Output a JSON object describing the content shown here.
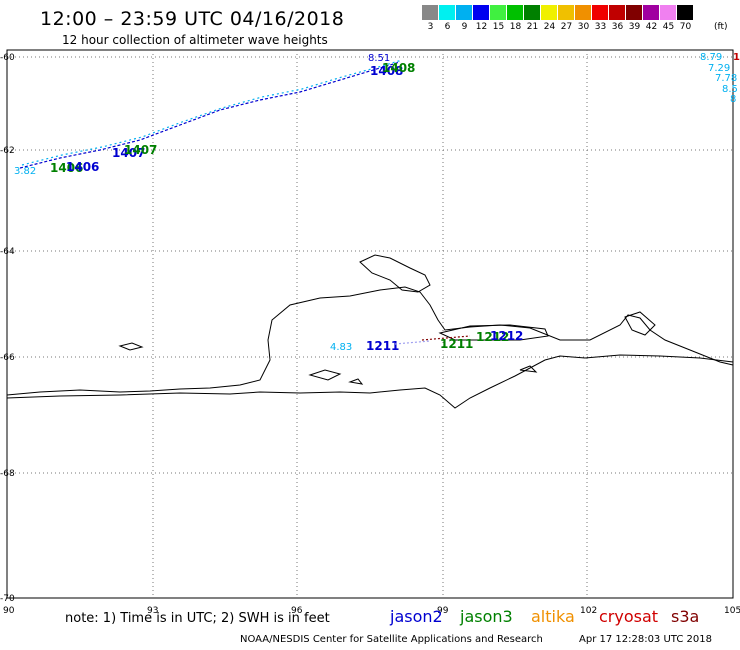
{
  "header": {
    "title": "12:00 – 23:59 UTC 04/16/2018",
    "subtitle": "12 hour collection of altimeter wave heights"
  },
  "colorbar": {
    "colors": [
      "#888888",
      "#00f0f0",
      "#00b0f0",
      "#0000f0",
      "#40f040",
      "#00c000",
      "#008000",
      "#f0f000",
      "#f0c000",
      "#f09000",
      "#f00000",
      "#c00000",
      "#800000",
      "#a000a0",
      "#f080f0",
      "#000000"
    ],
    "labels": [
      "3",
      "6",
      "9",
      "12",
      "15",
      "18",
      "21",
      "24",
      "27",
      "30",
      "33",
      "36",
      "39",
      "42",
      "45",
      "70"
    ],
    "unit": "(ft)"
  },
  "axes": {
    "y_labels": [
      "-60",
      "-62",
      "-64",
      "-66",
      "-68",
      "-70"
    ],
    "x_labels": [
      "90",
      "93",
      "96",
      "99",
      "102",
      "105"
    ]
  },
  "annotations": {
    "pass_1406": "1406",
    "pass_1407": "1407",
    "pass_1408": "1408",
    "pass_1211": "1211",
    "pass_1212": "1212",
    "val_top_right": [
      "8.79",
      "7.29",
      "7.78",
      "8.5",
      "8"
    ],
    "val_left": "3.82",
    "val_mid": "4.83",
    "val_top_start": "8.51",
    "top_right_red": "1"
  },
  "footer": {
    "note": "note:  1) Time is in UTC;  2) SWH is in feet",
    "legend": [
      {
        "label": "jason2",
        "color": "#0000d0"
      },
      {
        "label": "jason3",
        "color": "#008000"
      },
      {
        "label": "altika",
        "color": "#f09000"
      },
      {
        "label": "cryosat",
        "color": "#d00000"
      },
      {
        "label": "s3a",
        "color": "#800000"
      }
    ],
    "credit": "NOAA/NESDIS Center for Satellite Applications and Research",
    "timestamp": "Apr 17 12:28:03 UTC 2018"
  }
}
